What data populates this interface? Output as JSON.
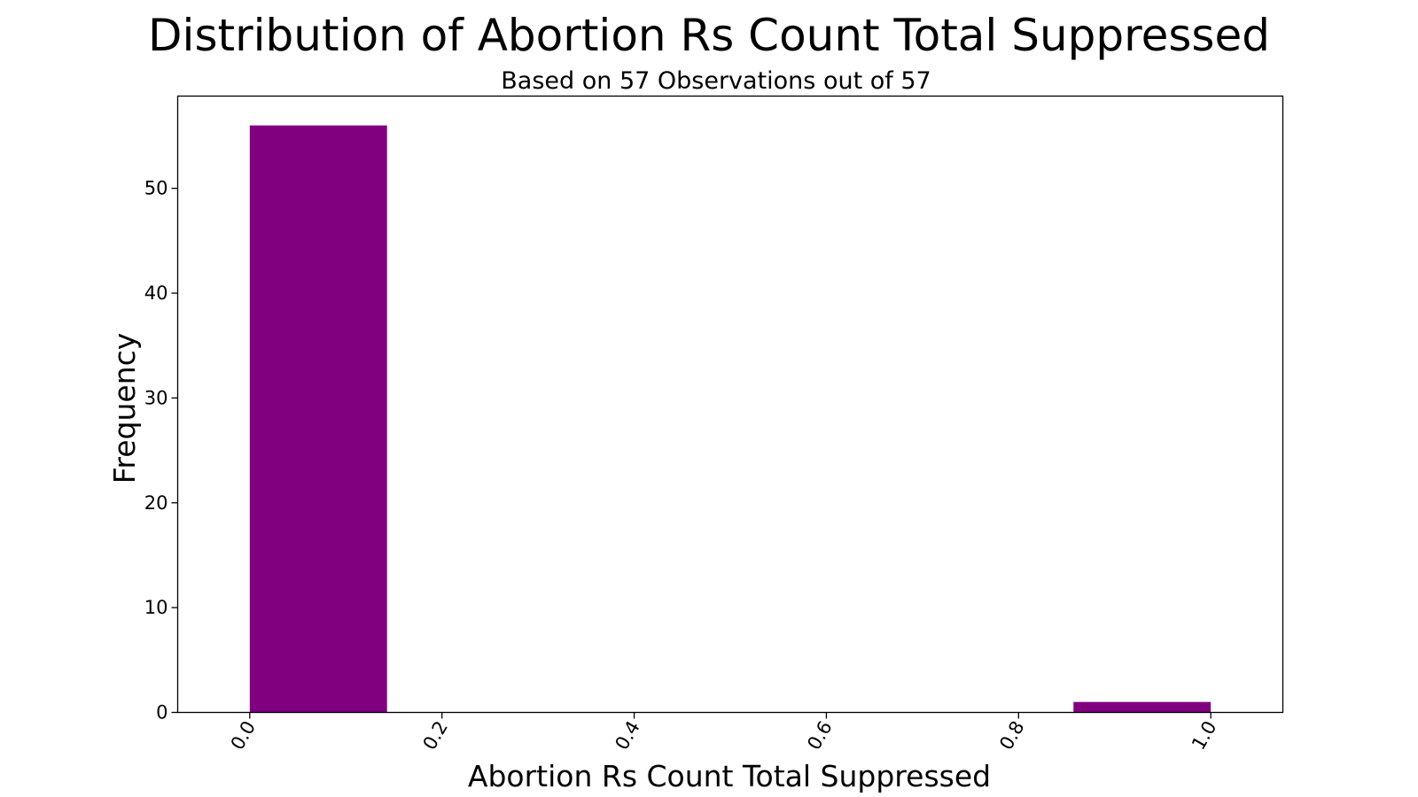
{
  "chart_data": {
    "type": "bar",
    "title": "Distribution of Abortion Rs Count Total Suppressed",
    "subtitle": "Based on 57 Observations out of 57",
    "xlabel": "Abortion Rs Count Total Suppressed",
    "ylabel": "Frequency",
    "xlim": [
      -0.075,
      1.075
    ],
    "ylim": [
      0,
      58.8
    ],
    "xticks": [
      0.0,
      0.2,
      0.4,
      0.6,
      0.8,
      1.0
    ],
    "xtick_labels": [
      "0.0",
      "0.2",
      "0.4",
      "0.6",
      "0.8",
      "1.0"
    ],
    "yticks": [
      0,
      10,
      20,
      30,
      40,
      50
    ],
    "ytick_labels": [
      "0",
      "10",
      "20",
      "30",
      "40",
      "50"
    ],
    "bins": [
      {
        "x0": 0.0,
        "x1": 0.142857,
        "count": 56
      },
      {
        "x0": 0.142857,
        "x1": 0.285714,
        "count": 0
      },
      {
        "x0": 0.285714,
        "x1": 0.428571,
        "count": 0
      },
      {
        "x0": 0.428571,
        "x1": 0.571429,
        "count": 0
      },
      {
        "x0": 0.571429,
        "x1": 0.714286,
        "count": 0
      },
      {
        "x0": 0.714286,
        "x1": 0.857143,
        "count": 0
      },
      {
        "x0": 0.857143,
        "x1": 1.0,
        "count": 1
      }
    ],
    "bar_color": "#800080",
    "grid": false,
    "legend": "none"
  }
}
